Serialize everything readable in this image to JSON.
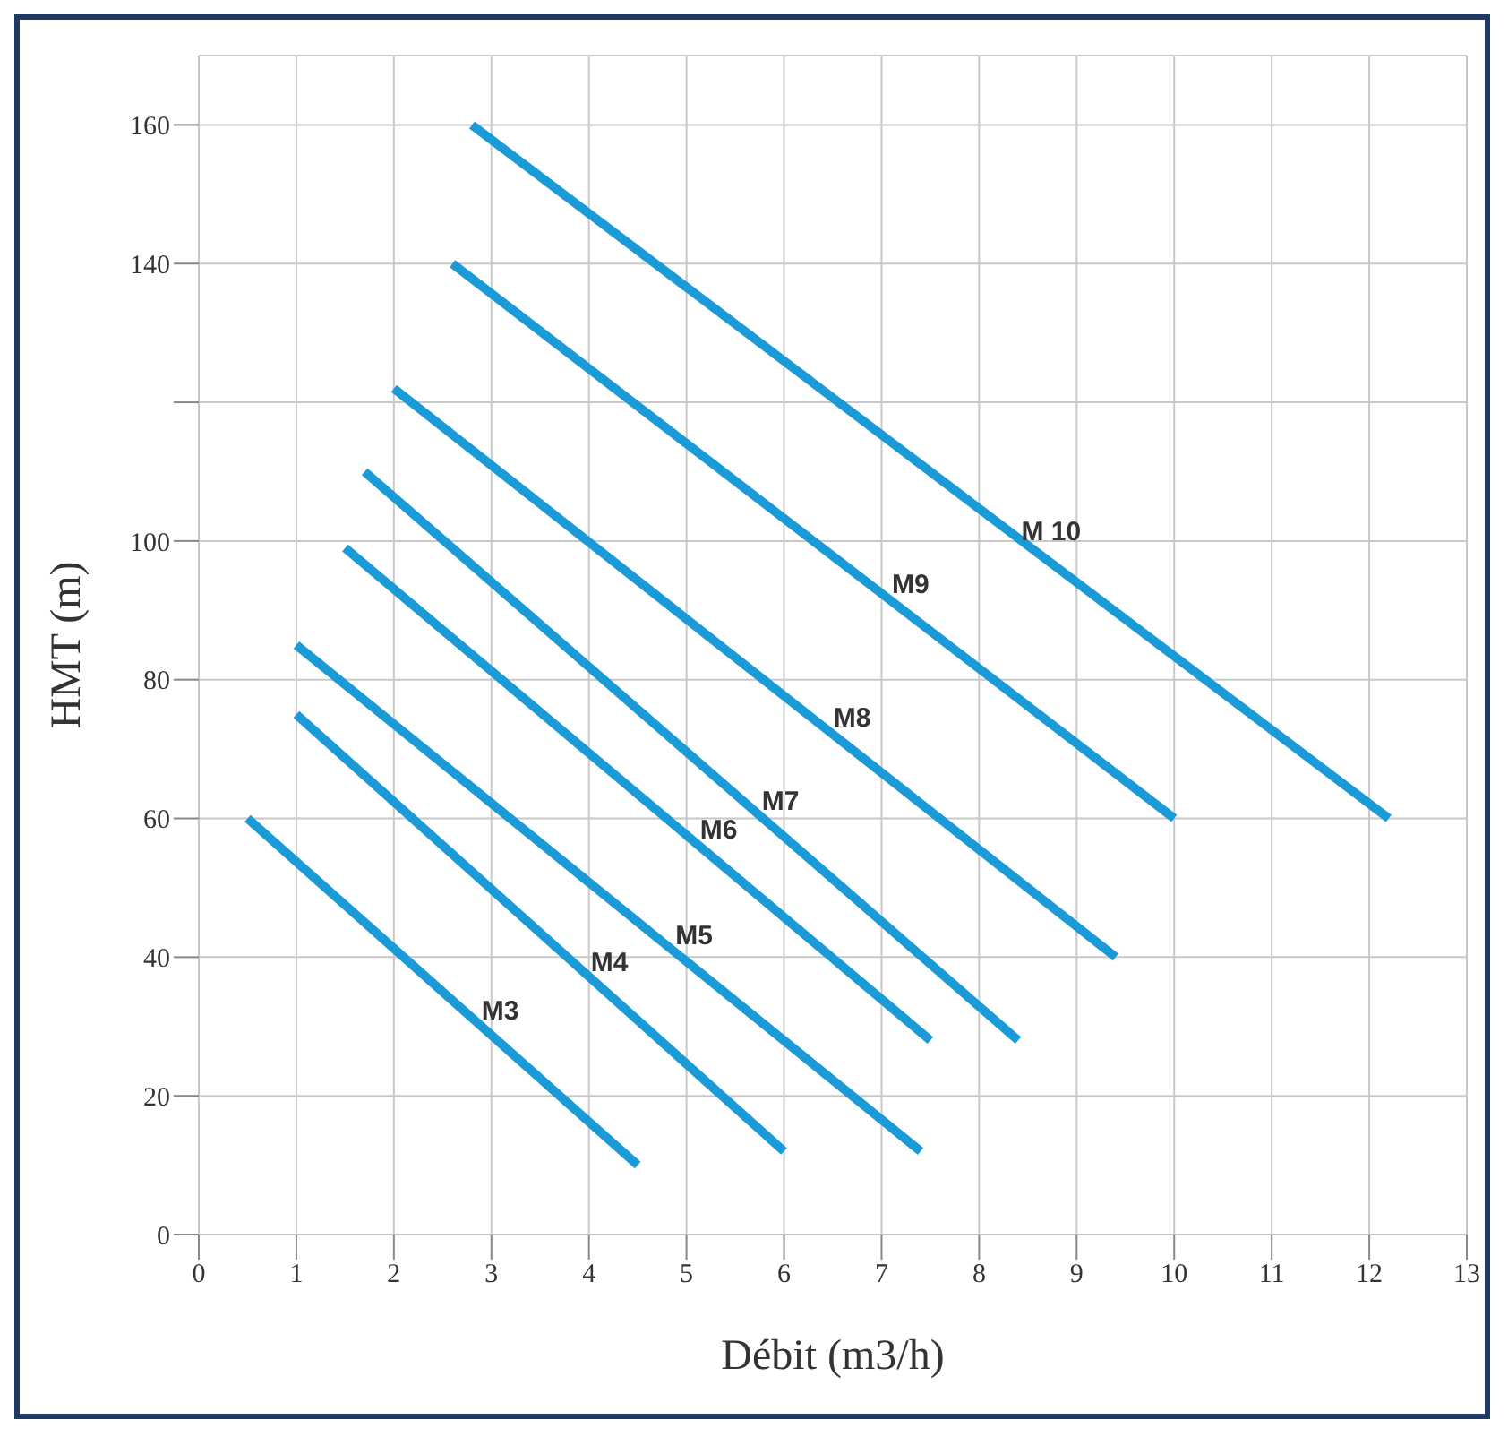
{
  "chart_data": {
    "type": "line",
    "xlabel": "Débit (m3/h)",
    "ylabel": "HMT (m)",
    "xlim": [
      0,
      13
    ],
    "xticks": [
      0,
      1,
      2,
      3,
      4,
      5,
      6,
      7,
      8,
      9,
      10,
      11,
      12,
      13
    ],
    "ylim": [
      0,
      170
    ],
    "yticks": [
      0,
      20,
      40,
      60,
      80,
      100,
      {
        "value": 120,
        "label": null
      },
      140,
      160
    ],
    "grid": true,
    "legend": false,
    "marker": "none",
    "line_style": "solid",
    "series": [
      {
        "name": "M3",
        "color": "#1a9ad6",
        "x": [
          0.5,
          4.5
        ],
        "values": [
          60,
          10
        ]
      },
      {
        "name": "M4",
        "color": "#1a9ad6",
        "x": [
          1,
          6
        ],
        "values": [
          75,
          12
        ]
      },
      {
        "name": "M5",
        "color": "#1a9ad6",
        "x": [
          1,
          7.4
        ],
        "values": [
          85,
          12
        ]
      },
      {
        "name": "M6",
        "color": "#1a9ad6",
        "x": [
          1.5,
          7.5
        ],
        "values": [
          99,
          28
        ]
      },
      {
        "name": "M7",
        "color": "#1a9ad6",
        "x": [
          1.7,
          8.4
        ],
        "values": [
          110,
          28
        ]
      },
      {
        "name": "M8",
        "color": "#1a9ad6",
        "x": [
          2,
          9.4
        ],
        "values": [
          122,
          40
        ]
      },
      {
        "name": "M9",
        "color": "#1a9ad6",
        "x": [
          2.6,
          10
        ],
        "values": [
          140,
          60
        ]
      },
      {
        "name": "M 10",
        "color": "#1a9ad6",
        "x": [
          2.8,
          12.2
        ],
        "values": [
          160,
          60
        ]
      }
    ]
  }
}
